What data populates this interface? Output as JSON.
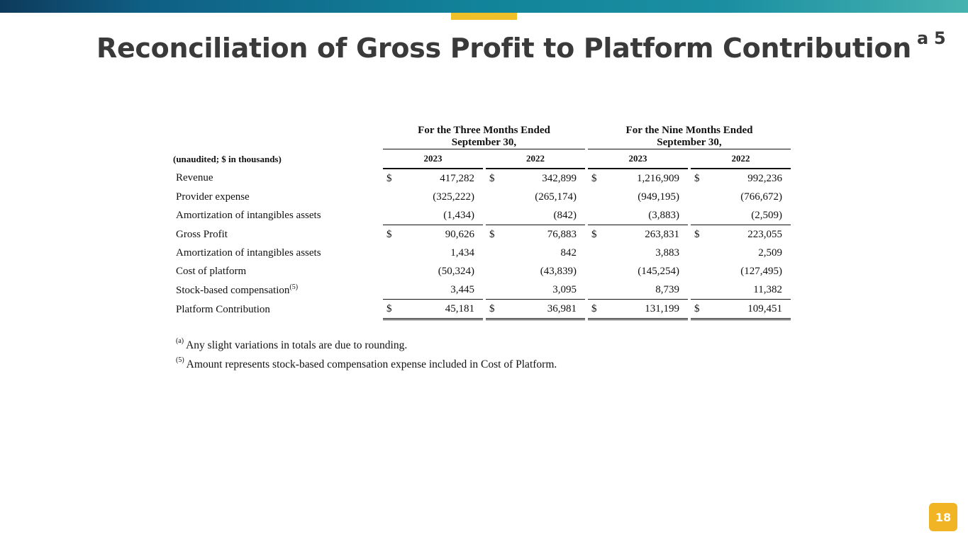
{
  "slide": {
    "title": "Reconciliation of Gross Profit to Platform Contribution",
    "title_sup": "a 5",
    "page_number": "18"
  },
  "table": {
    "period_1": [
      "For the Three Months Ended",
      "September 30,"
    ],
    "period_2": [
      "For the Nine Months Ended",
      "September 30,"
    ],
    "units": "(unaudited; $ in thousands)",
    "years": [
      "2023",
      "2022",
      "2023",
      "2022"
    ],
    "currency": "$",
    "rows": [
      {
        "label": "Revenue",
        "values": [
          "417,282",
          "342,899",
          "1,216,909",
          "992,236"
        ]
      },
      {
        "label": "Provider expense",
        "values": [
          "(325,222)",
          "(265,174)",
          "(949,195)",
          "(766,672)"
        ]
      },
      {
        "label": "Amortization of intangibles assets",
        "values": [
          "(1,434)",
          "(842)",
          "(3,883)",
          "(2,509)"
        ]
      },
      {
        "label": "Gross Profit",
        "values": [
          "90,626",
          "76,883",
          "263,831",
          "223,055"
        ]
      },
      {
        "label": "Amortization of intangibles assets",
        "values": [
          "1,434",
          "842",
          "3,883",
          "2,509"
        ]
      },
      {
        "label": "Cost of platform",
        "values": [
          "(50,324)",
          "(43,839)",
          "(145,254)",
          "(127,495)"
        ]
      },
      {
        "label": "Stock-based compensation",
        "label_sup": "(5)",
        "values": [
          "3,445",
          "3,095",
          "8,739",
          "11,382"
        ]
      },
      {
        "label": "Platform Contribution",
        "values": [
          "45,181",
          "36,981",
          "131,199",
          "109,451"
        ]
      }
    ]
  },
  "footnotes": [
    {
      "mark": "(a)",
      "text": "Any slight variations in totals are due to rounding."
    },
    {
      "mark": "(5)",
      "text": "Amount represents stock-based compensation expense included in Cost of Platform."
    }
  ],
  "colors": {
    "bar_start": "#0d3a5c",
    "bar_end": "#47b3b0",
    "accent": "#f0c02a",
    "title": "#3a3a3a",
    "badge": "#f0b425"
  }
}
